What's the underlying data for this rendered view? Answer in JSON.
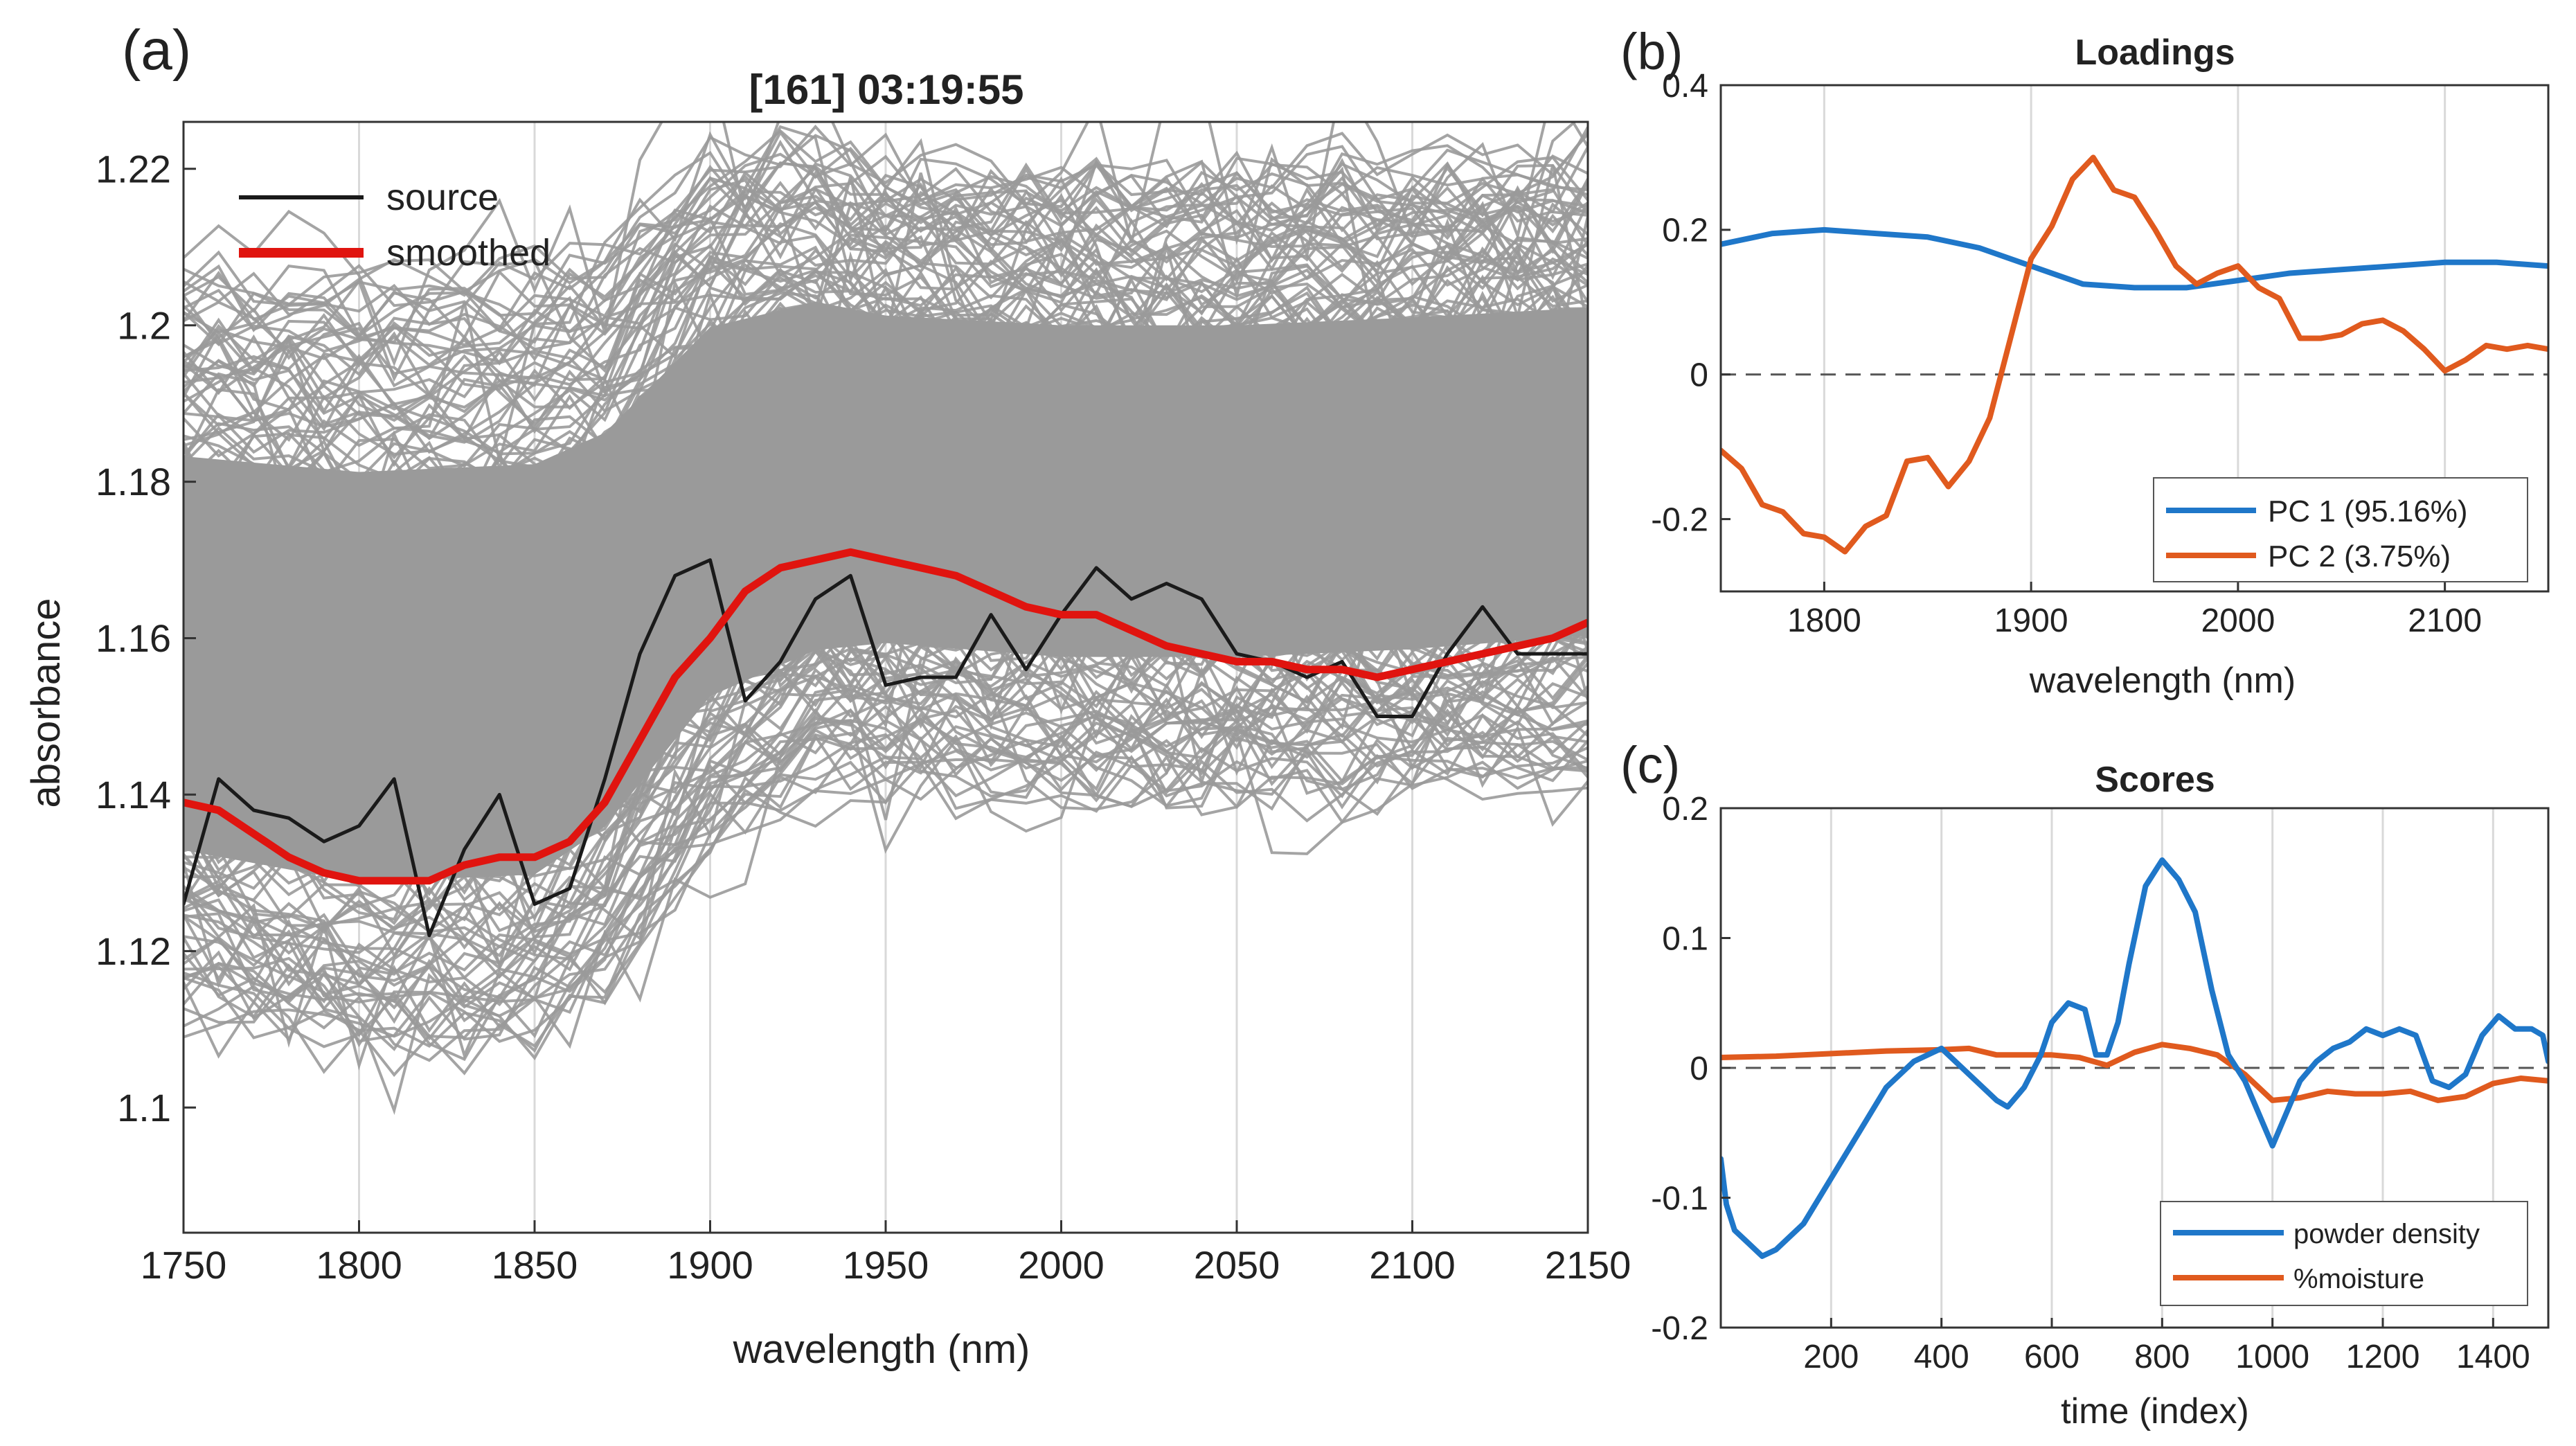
{
  "panel_labels": {
    "a": "(a)",
    "b": "(b)",
    "c": "(c)"
  },
  "colors": {
    "spectra": "#9a9a9a",
    "source": "#1a1a1a",
    "smoothed": "#e0140f",
    "pc1": "#1f77c9",
    "pc2": "#e05a1e",
    "grid": "#d9d9d9",
    "axes": "#333333",
    "zero_line": "#555555"
  },
  "chart_data": [
    {
      "id": "a",
      "type": "line",
      "title": "[161] 03:19:55",
      "xlabel": "wavelength (nm)",
      "ylabel": "absorbance",
      "xlim": [
        1750,
        2150
      ],
      "ylim": [
        1.084,
        1.226
      ],
      "xticks": [
        1750,
        1800,
        1850,
        1900,
        1950,
        2000,
        2050,
        2100,
        2150
      ],
      "xtick_labels": [
        "1750",
        "1800",
        "1850",
        "1900",
        "1950",
        "2000",
        "2050",
        "2100",
        "2150"
      ],
      "yticks": [
        1.1,
        1.12,
        1.14,
        1.16,
        1.18,
        1.2,
        1.22
      ],
      "ytick_labels": [
        "1.1",
        "1.12",
        "1.14",
        "1.16",
        "1.18",
        "1.2",
        "1.22"
      ],
      "grid": "x",
      "legend": "top-left",
      "background_band": {
        "name": "all spectra",
        "x": [
          1750,
          1800,
          1850,
          1870,
          1900,
          1930,
          1950,
          2000,
          2050,
          2100,
          2150
        ],
        "lower": [
          1.112,
          1.107,
          1.108,
          1.115,
          1.133,
          1.14,
          1.142,
          1.14,
          1.14,
          1.141,
          1.143
        ],
        "upper": [
          1.207,
          1.206,
          1.207,
          1.21,
          1.222,
          1.224,
          1.221,
          1.22,
          1.22,
          1.221,
          1.222
        ]
      },
      "series": [
        {
          "name": "source",
          "x": [
            1750,
            1760,
            1770,
            1780,
            1790,
            1800,
            1810,
            1820,
            1830,
            1840,
            1850,
            1860,
            1870,
            1880,
            1890,
            1900,
            1910,
            1920,
            1930,
            1940,
            1950,
            1960,
            1970,
            1980,
            1990,
            2000,
            2010,
            2020,
            2030,
            2040,
            2050,
            2060,
            2070,
            2080,
            2090,
            2100,
            2110,
            2120,
            2130,
            2140,
            2150
          ],
          "values": [
            1.126,
            1.142,
            1.138,
            1.137,
            1.134,
            1.136,
            1.142,
            1.122,
            1.133,
            1.14,
            1.126,
            1.128,
            1.142,
            1.158,
            1.168,
            1.17,
            1.152,
            1.157,
            1.165,
            1.168,
            1.154,
            1.155,
            1.155,
            1.163,
            1.156,
            1.163,
            1.169,
            1.165,
            1.167,
            1.165,
            1.158,
            1.157,
            1.155,
            1.157,
            1.15,
            1.15,
            1.158,
            1.164,
            1.158,
            1.158,
            1.158
          ]
        },
        {
          "name": "smoothed",
          "x": [
            1750,
            1760,
            1770,
            1780,
            1790,
            1800,
            1810,
            1820,
            1830,
            1840,
            1850,
            1860,
            1870,
            1880,
            1890,
            1900,
            1910,
            1920,
            1930,
            1940,
            1950,
            1960,
            1970,
            1980,
            1990,
            2000,
            2010,
            2020,
            2030,
            2040,
            2050,
            2060,
            2070,
            2080,
            2090,
            2100,
            2110,
            2120,
            2130,
            2140,
            2150
          ],
          "values": [
            1.139,
            1.138,
            1.135,
            1.132,
            1.13,
            1.129,
            1.129,
            1.129,
            1.131,
            1.132,
            1.132,
            1.134,
            1.139,
            1.147,
            1.155,
            1.16,
            1.166,
            1.169,
            1.17,
            1.171,
            1.17,
            1.169,
            1.168,
            1.166,
            1.164,
            1.163,
            1.163,
            1.161,
            1.159,
            1.158,
            1.157,
            1.157,
            1.156,
            1.156,
            1.155,
            1.156,
            1.157,
            1.158,
            1.159,
            1.16,
            1.162
          ]
        }
      ]
    },
    {
      "id": "b",
      "type": "line",
      "title": "Loadings",
      "xlabel": "wavelength (nm)",
      "ylabel": "",
      "xlim": [
        1750,
        2150
      ],
      "ylim": [
        -0.3,
        0.4
      ],
      "xticks": [
        1800,
        1900,
        2000,
        2100
      ],
      "xtick_labels": [
        "1800",
        "1900",
        "2000",
        "2100"
      ],
      "yticks": [
        -0.2,
        0,
        0.2,
        0.4
      ],
      "ytick_labels": [
        "-0.2",
        "0",
        "0.2",
        "0.4"
      ],
      "grid": "x",
      "zero_line": true,
      "legend": "bottom-right",
      "series": [
        {
          "name": "PC 1 (95.16%)",
          "x": [
            1750,
            1775,
            1800,
            1825,
            1850,
            1875,
            1900,
            1925,
            1950,
            1975,
            2000,
            2025,
            2050,
            2075,
            2100,
            2125,
            2150
          ],
          "values": [
            0.18,
            0.195,
            0.2,
            0.195,
            0.19,
            0.175,
            0.15,
            0.125,
            0.12,
            0.12,
            0.13,
            0.14,
            0.145,
            0.15,
            0.155,
            0.155,
            0.15
          ]
        },
        {
          "name": "PC 2 (3.75%)",
          "x": [
            1750,
            1760,
            1770,
            1780,
            1790,
            1800,
            1810,
            1820,
            1830,
            1840,
            1850,
            1860,
            1870,
            1880,
            1890,
            1900,
            1910,
            1920,
            1930,
            1940,
            1950,
            1960,
            1970,
            1980,
            1990,
            2000,
            2010,
            2020,
            2030,
            2040,
            2050,
            2060,
            2070,
            2080,
            2090,
            2100,
            2110,
            2120,
            2130,
            2140,
            2150
          ],
          "values": [
            -0.105,
            -0.13,
            -0.18,
            -0.19,
            -0.22,
            -0.225,
            -0.245,
            -0.21,
            -0.195,
            -0.12,
            -0.115,
            -0.155,
            -0.12,
            -0.06,
            0.05,
            0.16,
            0.205,
            0.27,
            0.3,
            0.255,
            0.245,
            0.2,
            0.15,
            0.125,
            0.14,
            0.15,
            0.12,
            0.105,
            0.05,
            0.05,
            0.055,
            0.07,
            0.075,
            0.06,
            0.035,
            0.005,
            0.02,
            0.04,
            0.035,
            0.04,
            0.035
          ]
        }
      ]
    },
    {
      "id": "c",
      "type": "line",
      "title": "Scores",
      "xlabel": "time (index)",
      "ylabel": "",
      "xlim": [
        0,
        1500
      ],
      "ylim": [
        -0.2,
        0.2
      ],
      "xticks": [
        200,
        400,
        600,
        800,
        1000,
        1200,
        1400
      ],
      "xtick_labels": [
        "200",
        "400",
        "600",
        "800",
        "1000",
        "1200",
        "1400"
      ],
      "yticks": [
        -0.2,
        -0.1,
        0,
        0.1,
        0.2
      ],
      "ytick_labels": [
        "-0.2",
        "-0.1",
        "0",
        "0.1",
        "0.2"
      ],
      "grid": "x",
      "zero_line": true,
      "legend": "bottom-right",
      "series": [
        {
          "name": "powder density",
          "x": [
            0,
            10,
            25,
            50,
            75,
            100,
            150,
            200,
            250,
            300,
            350,
            400,
            450,
            500,
            520,
            550,
            580,
            600,
            630,
            660,
            680,
            700,
            720,
            740,
            770,
            800,
            830,
            860,
            890,
            920,
            950,
            980,
            1000,
            1020,
            1050,
            1080,
            1110,
            1140,
            1170,
            1200,
            1230,
            1260,
            1290,
            1320,
            1350,
            1380,
            1410,
            1440,
            1470,
            1490,
            1500
          ],
          "values": [
            -0.07,
            -0.105,
            -0.125,
            -0.135,
            -0.145,
            -0.14,
            -0.12,
            -0.085,
            -0.05,
            -0.015,
            0.005,
            0.015,
            -0.005,
            -0.025,
            -0.03,
            -0.015,
            0.01,
            0.035,
            0.05,
            0.045,
            0.01,
            0.01,
            0.035,
            0.08,
            0.14,
            0.16,
            0.145,
            0.12,
            0.06,
            0.01,
            -0.01,
            -0.04,
            -0.06,
            -0.04,
            -0.01,
            0.005,
            0.015,
            0.02,
            0.03,
            0.025,
            0.03,
            0.025,
            -0.01,
            -0.015,
            -0.005,
            0.025,
            0.04,
            0.03,
            0.03,
            0.025,
            0.005
          ]
        },
        {
          "name": "%moisture",
          "x": [
            0,
            100,
            200,
            300,
            400,
            450,
            500,
            600,
            650,
            700,
            750,
            800,
            850,
            900,
            950,
            1000,
            1050,
            1100,
            1150,
            1200,
            1250,
            1300,
            1350,
            1400,
            1450,
            1500
          ],
          "values": [
            0.008,
            0.009,
            0.011,
            0.013,
            0.014,
            0.015,
            0.01,
            0.01,
            0.008,
            0.002,
            0.012,
            0.018,
            0.015,
            0.01,
            -0.005,
            -0.025,
            -0.023,
            -0.018,
            -0.02,
            -0.02,
            -0.018,
            -0.025,
            -0.022,
            -0.012,
            -0.008,
            -0.01
          ]
        }
      ]
    }
  ]
}
